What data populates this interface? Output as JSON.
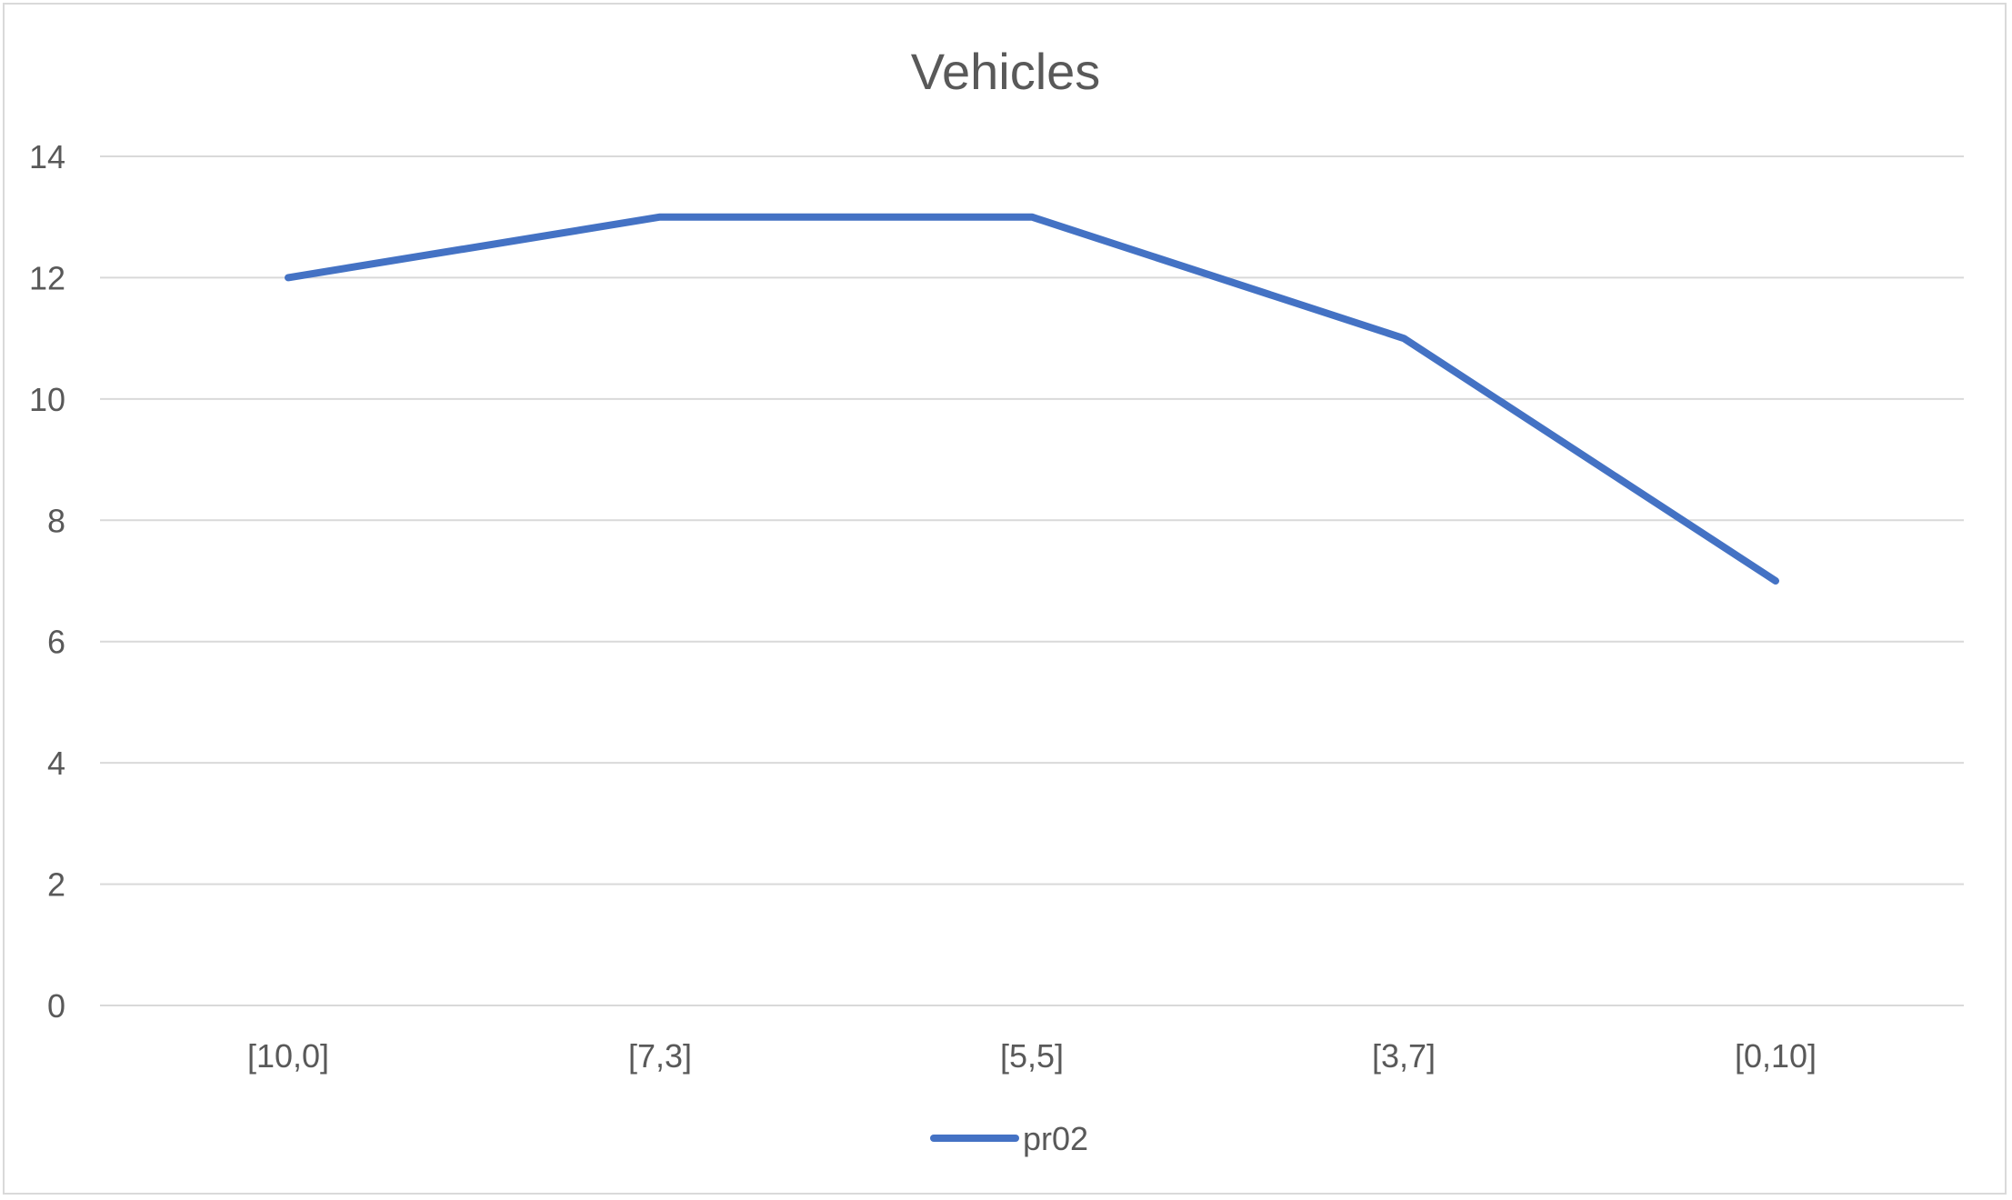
{
  "chart_data": {
    "type": "line",
    "title": "Vehicles",
    "xlabel": "",
    "ylabel": "",
    "categories": [
      "[10,0]",
      "[7,3]",
      "[5,5]",
      "[3,7]",
      "[0,10]"
    ],
    "series": [
      {
        "name": "pr02",
        "values": [
          12,
          13,
          13,
          11,
          7
        ],
        "color": "#4472c4"
      }
    ],
    "ylim": [
      0,
      14
    ],
    "yticks": [
      0,
      2,
      4,
      6,
      8,
      10,
      12,
      14
    ],
    "grid": true,
    "legend_position": "bottom"
  }
}
